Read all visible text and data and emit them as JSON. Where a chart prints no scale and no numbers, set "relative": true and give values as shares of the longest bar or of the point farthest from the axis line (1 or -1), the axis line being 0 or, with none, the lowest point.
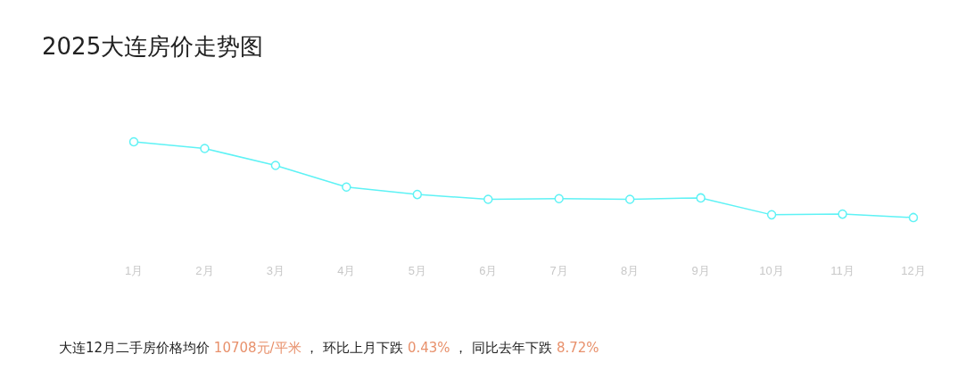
{
  "chart_data": {
    "type": "line",
    "title": "2025大连房价走势图",
    "relative": true,
    "categories": [
      "1月",
      "2月",
      "3月",
      "4月",
      "5月",
      "6月",
      "7月",
      "8月",
      "9月",
      "10月",
      "11月",
      "12月"
    ],
    "series": [
      {
        "color": "#5ef2f5",
        "values": [
          1,
          0.911,
          0.688,
          0.402,
          0.304,
          0.241,
          0.25,
          0.241,
          0.259,
          0.036,
          0.045,
          0
        ]
      }
    ],
    "marker": "circle",
    "annotations": [
      "大连12月二手房价格均价 ",
      "10708元/平米",
      " ， 环比上月下跌 ",
      "0.43%",
      " ， 同比去年下跌 ",
      "8.72%"
    ]
  }
}
